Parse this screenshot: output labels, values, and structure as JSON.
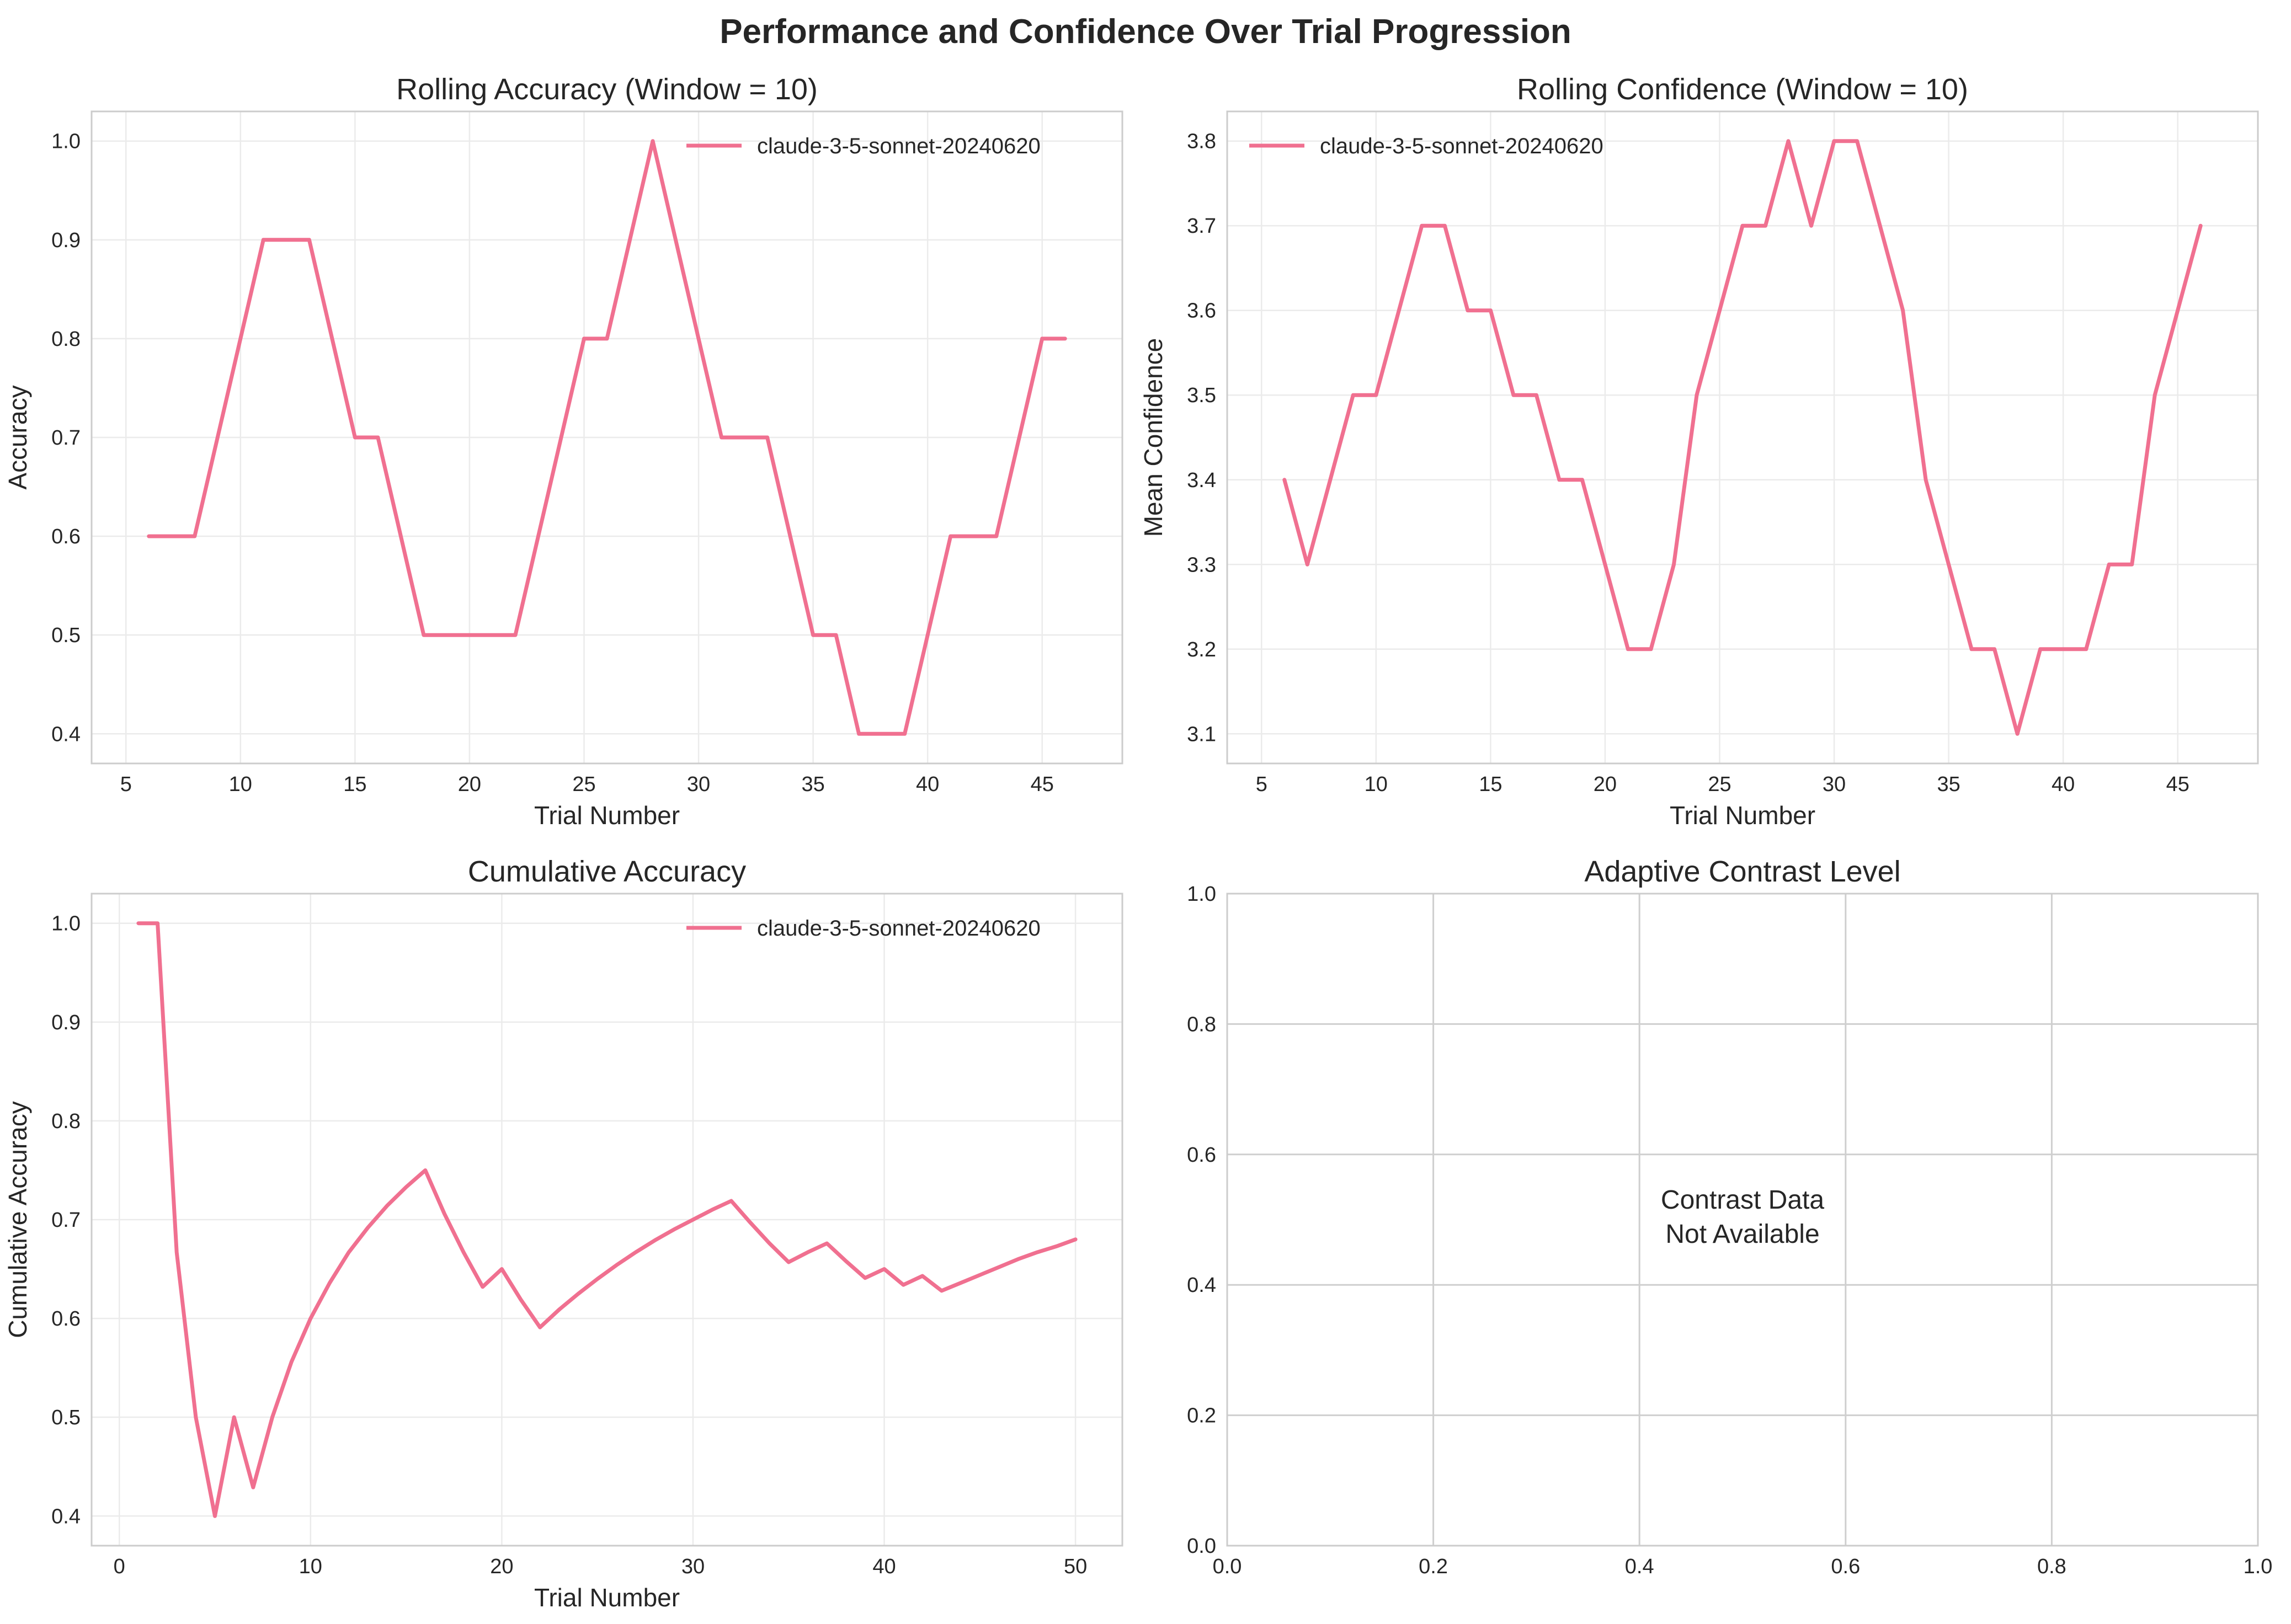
{
  "figure": {
    "title": "Performance and Confidence Over Trial Progression"
  },
  "chart_data": [
    {
      "id": "rolling-accuracy",
      "type": "line",
      "title": "Rolling Accuracy (Window = 10)",
      "xlabel": "Trial Number",
      "ylabel": "Accuracy",
      "xlim": [
        3.5,
        48.5
      ],
      "ylim": [
        0.37,
        1.03
      ],
      "xticks": [
        5,
        10,
        15,
        20,
        25,
        30,
        35,
        40,
        45
      ],
      "yticks": [
        0.4,
        0.5,
        0.6,
        0.7,
        0.8,
        0.9,
        1.0
      ],
      "xtick_labels": [
        "5",
        "10",
        "15",
        "20",
        "25",
        "30",
        "35",
        "40",
        "45"
      ],
      "ytick_labels": [
        "0.4",
        "0.5",
        "0.6",
        "0.7",
        "0.8",
        "0.9",
        "1.0"
      ],
      "grid": true,
      "legend": "top-right",
      "series": [
        {
          "name": "claude-3-5-sonnet-20240620",
          "color": "#f07090",
          "x": [
            6,
            7,
            8,
            9,
            10,
            11,
            12,
            13,
            14,
            15,
            16,
            17,
            18,
            19,
            20,
            21,
            22,
            23,
            24,
            25,
            26,
            27,
            28,
            29,
            30,
            31,
            32,
            33,
            34,
            35,
            36,
            37,
            38,
            39,
            40,
            41,
            42,
            43,
            44,
            45,
            46
          ],
          "y": [
            0.6,
            0.6,
            0.6,
            0.7,
            0.8,
            0.9,
            0.9,
            0.9,
            0.8,
            0.7,
            0.7,
            0.6,
            0.5,
            0.5,
            0.5,
            0.5,
            0.5,
            0.6,
            0.7,
            0.8,
            0.8,
            0.9,
            1.0,
            0.9,
            0.8,
            0.7,
            0.7,
            0.7,
            0.6,
            0.5,
            0.5,
            0.4,
            0.4,
            0.4,
            0.5,
            0.6,
            0.6,
            0.6,
            0.7,
            0.8,
            0.8
          ]
        }
      ]
    },
    {
      "id": "rolling-confidence",
      "type": "line",
      "title": "Rolling Confidence (Window = 10)",
      "xlabel": "Trial Number",
      "ylabel": "Mean Confidence",
      "xlim": [
        3.5,
        48.5
      ],
      "ylim": [
        3.065,
        3.835
      ],
      "xticks": [
        5,
        10,
        15,
        20,
        25,
        30,
        35,
        40,
        45
      ],
      "yticks": [
        3.1,
        3.2,
        3.3,
        3.4,
        3.5,
        3.6,
        3.7,
        3.8
      ],
      "xtick_labels": [
        "5",
        "10",
        "15",
        "20",
        "25",
        "30",
        "35",
        "40",
        "45"
      ],
      "ytick_labels": [
        "3.1",
        "3.2",
        "3.3",
        "3.4",
        "3.5",
        "3.6",
        "3.7",
        "3.8"
      ],
      "grid": true,
      "legend": "top-left",
      "series": [
        {
          "name": "claude-3-5-sonnet-20240620",
          "color": "#f07090",
          "x": [
            6,
            7,
            8,
            9,
            10,
            11,
            12,
            13,
            14,
            15,
            16,
            17,
            18,
            19,
            20,
            21,
            22,
            23,
            24,
            25,
            26,
            27,
            28,
            29,
            30,
            31,
            32,
            33,
            34,
            35,
            36,
            37,
            38,
            39,
            40,
            41,
            42,
            43,
            44,
            45,
            46
          ],
          "y": [
            3.4,
            3.3,
            3.4,
            3.5,
            3.5,
            3.6,
            3.7,
            3.7,
            3.6,
            3.6,
            3.5,
            3.5,
            3.4,
            3.4,
            3.3,
            3.2,
            3.2,
            3.3,
            3.5,
            3.6,
            3.7,
            3.7,
            3.8,
            3.7,
            3.8,
            3.8,
            3.7,
            3.6,
            3.4,
            3.3,
            3.2,
            3.2,
            3.1,
            3.2,
            3.2,
            3.2,
            3.3,
            3.3,
            3.5,
            3.6,
            3.7
          ]
        }
      ]
    },
    {
      "id": "cumulative-accuracy",
      "type": "line",
      "title": "Cumulative Accuracy",
      "xlabel": "Trial Number",
      "ylabel": "Cumulative Accuracy",
      "xlim": [
        -1.45,
        52.45
      ],
      "ylim": [
        0.37,
        1.03
      ],
      "xticks": [
        0,
        10,
        20,
        30,
        40,
        50
      ],
      "yticks": [
        0.4,
        0.5,
        0.6,
        0.7,
        0.8,
        0.9,
        1.0
      ],
      "xtick_labels": [
        "0",
        "10",
        "20",
        "30",
        "40",
        "50"
      ],
      "ytick_labels": [
        "0.4",
        "0.5",
        "0.6",
        "0.7",
        "0.8",
        "0.9",
        "1.0"
      ],
      "grid": true,
      "legend": "top-right",
      "series": [
        {
          "name": "claude-3-5-sonnet-20240620",
          "color": "#f07090",
          "x": [
            1,
            2,
            3,
            4,
            5,
            6,
            7,
            8,
            9,
            10,
            11,
            12,
            13,
            14,
            15,
            16,
            17,
            18,
            19,
            20,
            21,
            22,
            23,
            24,
            25,
            26,
            27,
            28,
            29,
            30,
            31,
            32,
            33,
            34,
            35,
            36,
            37,
            38,
            39,
            40,
            41,
            42,
            43,
            44,
            45,
            46,
            47,
            48,
            49,
            50
          ],
          "y": [
            1.0,
            1.0,
            0.667,
            0.5,
            0.4,
            0.5,
            0.429,
            0.5,
            0.556,
            0.6,
            0.636,
            0.667,
            0.692,
            0.714,
            0.733,
            0.75,
            0.706,
            0.667,
            0.632,
            0.65,
            0.619,
            0.591,
            0.609,
            0.625,
            0.64,
            0.654,
            0.667,
            0.679,
            0.69,
            0.7,
            0.71,
            0.719,
            0.697,
            0.676,
            0.657,
            0.667,
            0.676,
            0.658,
            0.641,
            0.65,
            0.634,
            0.643,
            0.628,
            0.636,
            0.644,
            0.652,
            0.66,
            0.667,
            0.673,
            0.68
          ]
        }
      ]
    },
    {
      "id": "adaptive-contrast",
      "type": "line",
      "title": "Adaptive Contrast Level",
      "xlabel": "",
      "ylabel": "",
      "xlim": [
        0,
        1
      ],
      "ylim": [
        0,
        1
      ],
      "xticks": [
        0.0,
        0.2,
        0.4,
        0.6,
        0.8,
        1.0
      ],
      "yticks": [
        0.0,
        0.2,
        0.4,
        0.6,
        0.8,
        1.0
      ],
      "xtick_labels": [
        "0.0",
        "0.2",
        "0.4",
        "0.6",
        "0.8",
        "1.0"
      ],
      "ytick_labels": [
        "0.0",
        "0.2",
        "0.4",
        "0.6",
        "0.8",
        "1.0"
      ],
      "grid": true,
      "annotation": [
        "Contrast Data",
        "Not Available"
      ],
      "series": []
    }
  ]
}
